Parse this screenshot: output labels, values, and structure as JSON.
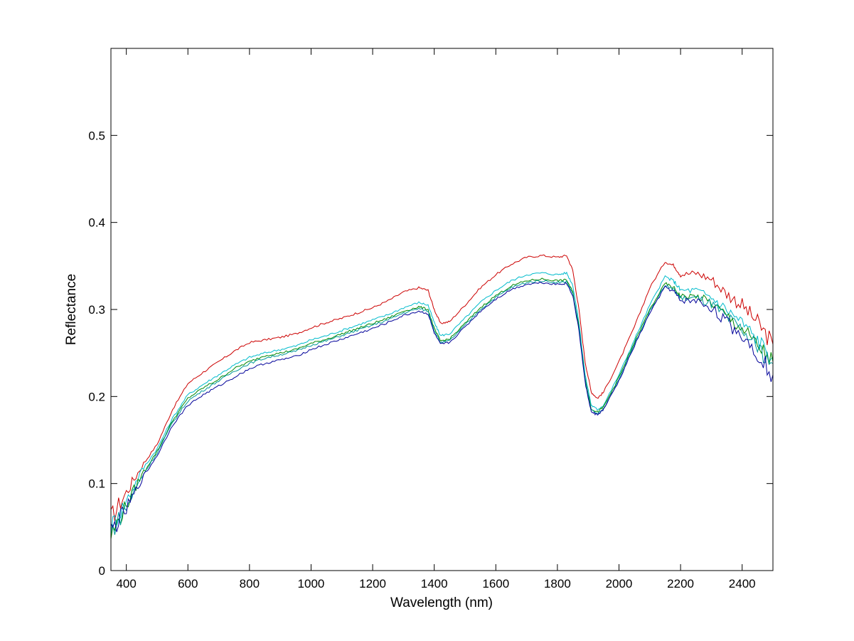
{
  "chart_data": {
    "type": "line",
    "title": "",
    "xlabel": "Wavelength (nm)",
    "ylabel": "Reflectance",
    "xlim": [
      350,
      2500
    ],
    "ylim": [
      0,
      0.6
    ],
    "xticks": [
      400,
      600,
      800,
      1000,
      1200,
      1400,
      1600,
      1800,
      2000,
      2200,
      2400
    ],
    "yticks": [
      0,
      0.1,
      0.2,
      0.3,
      0.4,
      0.5
    ],
    "grid": false,
    "legend": "none",
    "series": [
      {
        "color": "#cc0000",
        "points": [
          [
            350,
            0.06
          ],
          [
            400,
            0.09
          ],
          [
            450,
            0.12
          ],
          [
            500,
            0.145
          ],
          [
            550,
            0.185
          ],
          [
            600,
            0.215
          ],
          [
            650,
            0.228
          ],
          [
            700,
            0.24
          ],
          [
            750,
            0.252
          ],
          [
            800,
            0.262
          ],
          [
            850,
            0.265
          ],
          [
            900,
            0.268
          ],
          [
            950,
            0.272
          ],
          [
            1000,
            0.279
          ],
          [
            1050,
            0.285
          ],
          [
            1100,
            0.29
          ],
          [
            1150,
            0.296
          ],
          [
            1200,
            0.302
          ],
          [
            1250,
            0.31
          ],
          [
            1300,
            0.32
          ],
          [
            1350,
            0.325
          ],
          [
            1380,
            0.322
          ],
          [
            1400,
            0.3
          ],
          [
            1420,
            0.284
          ],
          [
            1450,
            0.286
          ],
          [
            1500,
            0.305
          ],
          [
            1550,
            0.325
          ],
          [
            1600,
            0.34
          ],
          [
            1650,
            0.352
          ],
          [
            1700,
            0.36
          ],
          [
            1750,
            0.362
          ],
          [
            1800,
            0.36
          ],
          [
            1830,
            0.362
          ],
          [
            1850,
            0.345
          ],
          [
            1870,
            0.3
          ],
          [
            1890,
            0.24
          ],
          [
            1910,
            0.205
          ],
          [
            1930,
            0.198
          ],
          [
            1950,
            0.205
          ],
          [
            2000,
            0.24
          ],
          [
            2050,
            0.28
          ],
          [
            2100,
            0.325
          ],
          [
            2150,
            0.355
          ],
          [
            2180,
            0.35
          ],
          [
            2200,
            0.34
          ],
          [
            2250,
            0.342
          ],
          [
            2300,
            0.335
          ],
          [
            2350,
            0.318
          ],
          [
            2400,
            0.305
          ],
          [
            2450,
            0.285
          ],
          [
            2500,
            0.26
          ]
        ]
      },
      {
        "color": "#00bbcc",
        "points": [
          [
            350,
            0.05
          ],
          [
            400,
            0.08
          ],
          [
            450,
            0.115
          ],
          [
            500,
            0.14
          ],
          [
            550,
            0.175
          ],
          [
            600,
            0.202
          ],
          [
            650,
            0.214
          ],
          [
            700,
            0.225
          ],
          [
            750,
            0.236
          ],
          [
            800,
            0.245
          ],
          [
            850,
            0.25
          ],
          [
            900,
            0.254
          ],
          [
            950,
            0.258
          ],
          [
            1000,
            0.265
          ],
          [
            1050,
            0.27
          ],
          [
            1100,
            0.276
          ],
          [
            1150,
            0.282
          ],
          [
            1200,
            0.288
          ],
          [
            1250,
            0.294
          ],
          [
            1300,
            0.302
          ],
          [
            1350,
            0.308
          ],
          [
            1380,
            0.305
          ],
          [
            1400,
            0.285
          ],
          [
            1420,
            0.27
          ],
          [
            1450,
            0.272
          ],
          [
            1500,
            0.29
          ],
          [
            1550,
            0.308
          ],
          [
            1600,
            0.322
          ],
          [
            1650,
            0.333
          ],
          [
            1700,
            0.34
          ],
          [
            1750,
            0.342
          ],
          [
            1800,
            0.34
          ],
          [
            1830,
            0.342
          ],
          [
            1850,
            0.328
          ],
          [
            1870,
            0.285
          ],
          [
            1890,
            0.225
          ],
          [
            1910,
            0.19
          ],
          [
            1930,
            0.185
          ],
          [
            1950,
            0.19
          ],
          [
            2000,
            0.225
          ],
          [
            2050,
            0.265
          ],
          [
            2100,
            0.305
          ],
          [
            2150,
            0.338
          ],
          [
            2180,
            0.332
          ],
          [
            2200,
            0.322
          ],
          [
            2250,
            0.322
          ],
          [
            2300,
            0.314
          ],
          [
            2350,
            0.3
          ],
          [
            2400,
            0.285
          ],
          [
            2450,
            0.265
          ],
          [
            2500,
            0.245
          ]
        ]
      },
      {
        "color": "#008800",
        "points": [
          [
            350,
            0.04
          ],
          [
            400,
            0.075
          ],
          [
            450,
            0.11
          ],
          [
            500,
            0.137
          ],
          [
            550,
            0.172
          ],
          [
            600,
            0.198
          ],
          [
            650,
            0.21
          ],
          [
            700,
            0.22
          ],
          [
            750,
            0.232
          ],
          [
            800,
            0.24
          ],
          [
            850,
            0.247
          ],
          [
            900,
            0.25
          ],
          [
            950,
            0.254
          ],
          [
            1000,
            0.261
          ],
          [
            1050,
            0.266
          ],
          [
            1100,
            0.272
          ],
          [
            1150,
            0.278
          ],
          [
            1200,
            0.284
          ],
          [
            1250,
            0.29
          ],
          [
            1300,
            0.298
          ],
          [
            1350,
            0.303
          ],
          [
            1380,
            0.3
          ],
          [
            1400,
            0.278
          ],
          [
            1420,
            0.264
          ],
          [
            1450,
            0.266
          ],
          [
            1500,
            0.284
          ],
          [
            1550,
            0.302
          ],
          [
            1600,
            0.316
          ],
          [
            1650,
            0.327
          ],
          [
            1700,
            0.333
          ],
          [
            1750,
            0.335
          ],
          [
            1800,
            0.333
          ],
          [
            1830,
            0.334
          ],
          [
            1850,
            0.32
          ],
          [
            1870,
            0.28
          ],
          [
            1890,
            0.22
          ],
          [
            1910,
            0.186
          ],
          [
            1930,
            0.182
          ],
          [
            1950,
            0.188
          ],
          [
            2000,
            0.222
          ],
          [
            2050,
            0.262
          ],
          [
            2100,
            0.3
          ],
          [
            2150,
            0.33
          ],
          [
            2180,
            0.324
          ],
          [
            2200,
            0.315
          ],
          [
            2250,
            0.315
          ],
          [
            2300,
            0.308
          ],
          [
            2350,
            0.292
          ],
          [
            2400,
            0.278
          ],
          [
            2450,
            0.258
          ],
          [
            2500,
            0.24
          ]
        ]
      },
      {
        "color": "#009999",
        "points": [
          [
            350,
            0.045
          ],
          [
            400,
            0.072
          ],
          [
            450,
            0.108
          ],
          [
            500,
            0.135
          ],
          [
            550,
            0.17
          ],
          [
            600,
            0.195
          ],
          [
            650,
            0.207
          ],
          [
            700,
            0.218
          ],
          [
            750,
            0.229
          ],
          [
            800,
            0.238
          ],
          [
            850,
            0.244
          ],
          [
            900,
            0.248
          ],
          [
            950,
            0.252
          ],
          [
            1000,
            0.259
          ],
          [
            1050,
            0.264
          ],
          [
            1100,
            0.27
          ],
          [
            1150,
            0.276
          ],
          [
            1200,
            0.282
          ],
          [
            1250,
            0.288
          ],
          [
            1300,
            0.296
          ],
          [
            1350,
            0.301
          ],
          [
            1380,
            0.298
          ],
          [
            1400,
            0.276
          ],
          [
            1420,
            0.262
          ],
          [
            1450,
            0.264
          ],
          [
            1500,
            0.282
          ],
          [
            1550,
            0.3
          ],
          [
            1600,
            0.314
          ],
          [
            1650,
            0.325
          ],
          [
            1700,
            0.331
          ],
          [
            1750,
            0.333
          ],
          [
            1800,
            0.331
          ],
          [
            1830,
            0.332
          ],
          [
            1850,
            0.318
          ],
          [
            1870,
            0.278
          ],
          [
            1890,
            0.218
          ],
          [
            1910,
            0.184
          ],
          [
            1930,
            0.18
          ],
          [
            1950,
            0.186
          ],
          [
            2000,
            0.22
          ],
          [
            2050,
            0.26
          ],
          [
            2100,
            0.298
          ],
          [
            2150,
            0.328
          ],
          [
            2180,
            0.322
          ],
          [
            2200,
            0.313
          ],
          [
            2250,
            0.313
          ],
          [
            2300,
            0.306
          ],
          [
            2350,
            0.29
          ],
          [
            2400,
            0.276
          ],
          [
            2450,
            0.256
          ],
          [
            2500,
            0.238
          ]
        ]
      },
      {
        "color": "#000099",
        "points": [
          [
            350,
            0.045
          ],
          [
            400,
            0.07
          ],
          [
            450,
            0.105
          ],
          [
            500,
            0.132
          ],
          [
            550,
            0.167
          ],
          [
            600,
            0.19
          ],
          [
            650,
            0.202
          ],
          [
            700,
            0.212
          ],
          [
            750,
            0.222
          ],
          [
            800,
            0.232
          ],
          [
            850,
            0.238
          ],
          [
            900,
            0.242
          ],
          [
            950,
            0.246
          ],
          [
            1000,
            0.254
          ],
          [
            1050,
            0.26
          ],
          [
            1100,
            0.266
          ],
          [
            1150,
            0.272
          ],
          [
            1200,
            0.278
          ],
          [
            1250,
            0.285
          ],
          [
            1300,
            0.293
          ],
          [
            1350,
            0.298
          ],
          [
            1380,
            0.295
          ],
          [
            1400,
            0.273
          ],
          [
            1420,
            0.26
          ],
          [
            1450,
            0.262
          ],
          [
            1500,
            0.28
          ],
          [
            1550,
            0.298
          ],
          [
            1600,
            0.312
          ],
          [
            1650,
            0.323
          ],
          [
            1700,
            0.329
          ],
          [
            1750,
            0.331
          ],
          [
            1800,
            0.329
          ],
          [
            1830,
            0.33
          ],
          [
            1850,
            0.316
          ],
          [
            1870,
            0.276
          ],
          [
            1890,
            0.216
          ],
          [
            1910,
            0.182
          ],
          [
            1930,
            0.179
          ],
          [
            1950,
            0.185
          ],
          [
            2000,
            0.218
          ],
          [
            2050,
            0.258
          ],
          [
            2100,
            0.296
          ],
          [
            2150,
            0.326
          ],
          [
            2180,
            0.32
          ],
          [
            2200,
            0.31
          ],
          [
            2250,
            0.31
          ],
          [
            2300,
            0.302
          ],
          [
            2350,
            0.285
          ],
          [
            2400,
            0.27
          ],
          [
            2450,
            0.25
          ],
          [
            2500,
            0.225
          ]
        ]
      }
    ]
  }
}
